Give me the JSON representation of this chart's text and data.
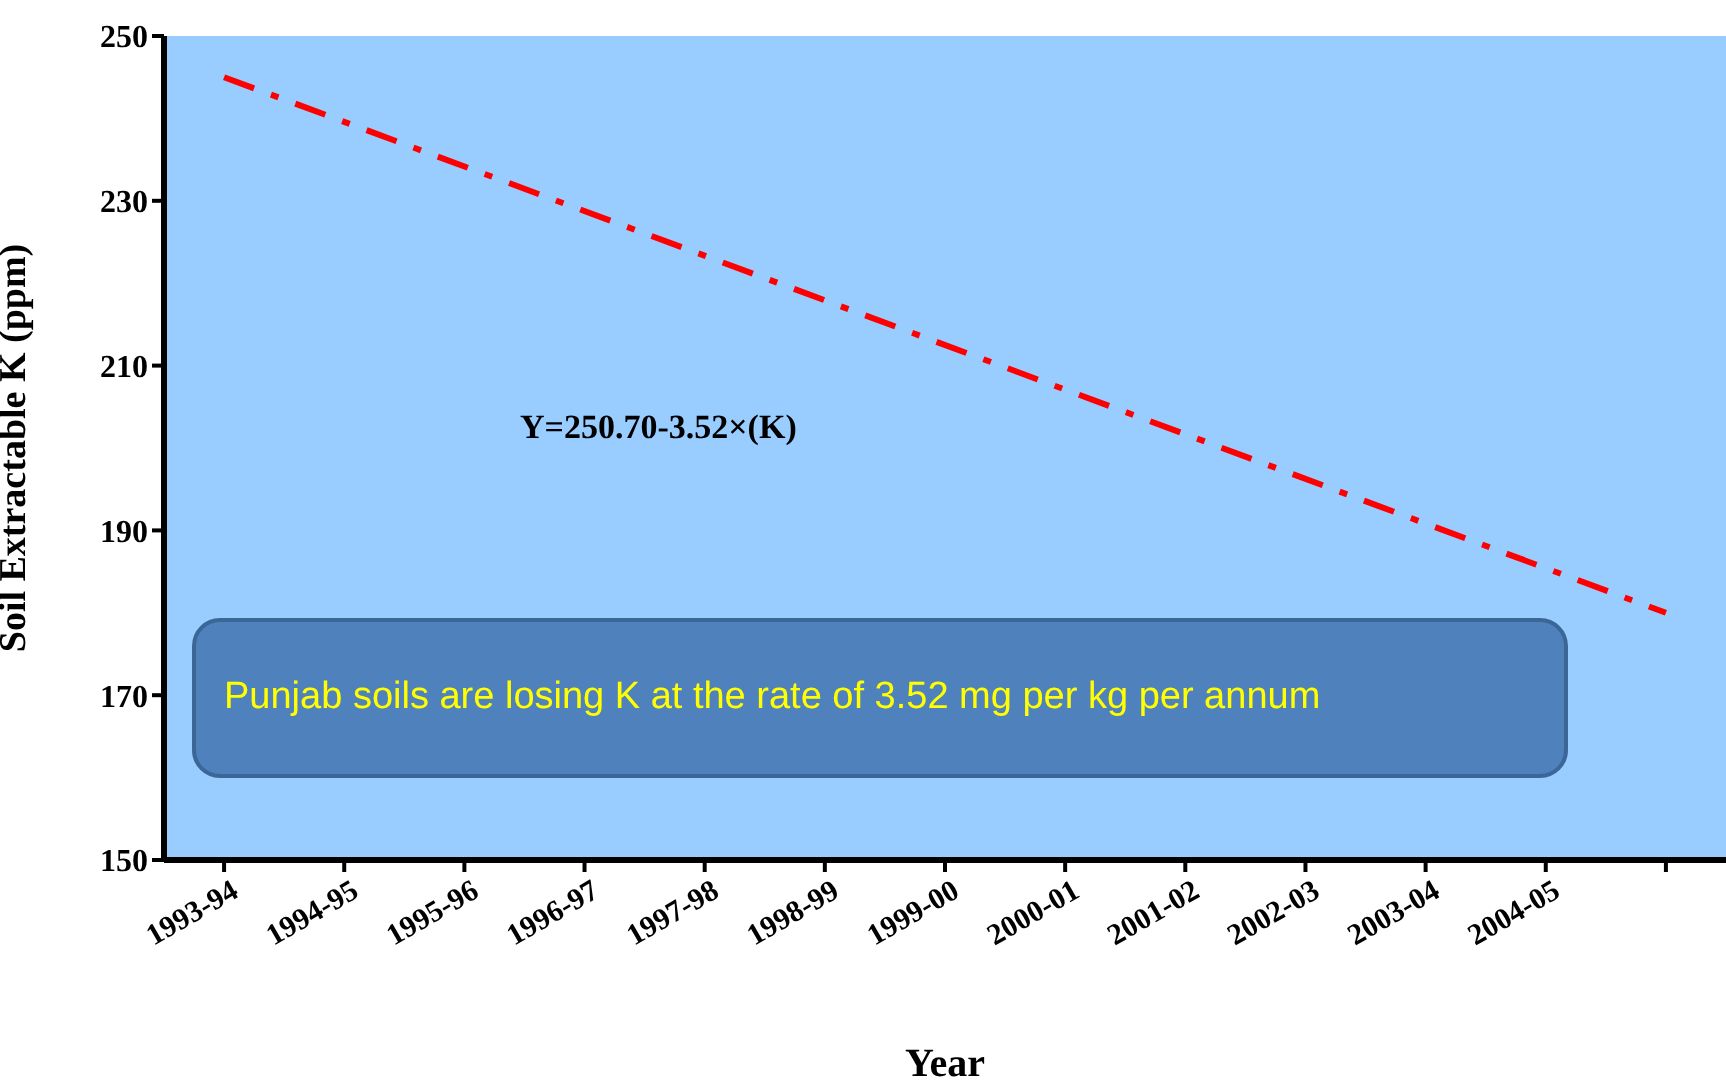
{
  "chart_data": {
    "type": "line",
    "xlabel": "Year",
    "ylabel": "Soil Extractable K (ppm)",
    "categories": [
      "1993-94",
      "1994-95",
      "1995-96",
      "1996-97",
      "1997-98",
      "1998-99",
      "1999-00",
      "2000-01",
      "2001-02",
      "2002-03",
      "2003-04",
      "2004-05",
      null
    ],
    "series": [
      {
        "color": "#ff0000",
        "values": [
          245,
          null,
          null,
          null,
          null,
          null,
          null,
          null,
          null,
          null,
          null,
          null,
          180
        ]
      }
    ],
    "ylim": [
      150,
      250
    ],
    "yticks": [
      150,
      170,
      190,
      210,
      230,
      250
    ],
    "grid": false,
    "marker": "none",
    "line_style": "dashed",
    "annotations": [
      "Y=250.70-3.52×(K)",
      "Punjab soils are losing K at the rate of 3.52 mg per kg per annum"
    ]
  }
}
